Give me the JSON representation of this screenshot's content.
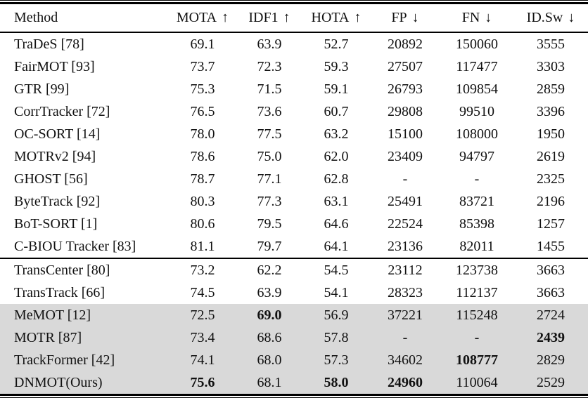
{
  "table": {
    "columns": [
      {
        "label": "Method",
        "arrow": ""
      },
      {
        "label": "MOTA",
        "arrow": "↑"
      },
      {
        "label": "IDF1",
        "arrow": "↑"
      },
      {
        "label": "HOTA",
        "arrow": "↑"
      },
      {
        "label": "FP",
        "arrow": "↓"
      },
      {
        "label": "FN",
        "arrow": "↓"
      },
      {
        "label": "ID.Sw",
        "arrow": "↓"
      }
    ],
    "colors": {
      "shaded_row_bg": "#d9d9d9",
      "rule": "#000000",
      "text": "#111111"
    },
    "sections": [
      {
        "shaded": false,
        "rule_above": false,
        "rows": [
          {
            "method": "TraDeS [78]",
            "values": [
              "69.1",
              "63.9",
              "52.7",
              "20892",
              "150060",
              "3555"
            ],
            "bold": []
          },
          {
            "method": "FairMOT [93]",
            "values": [
              "73.7",
              "72.3",
              "59.3",
              "27507",
              "117477",
              "3303"
            ],
            "bold": []
          },
          {
            "method": "GTR [99]",
            "values": [
              "75.3",
              "71.5",
              "59.1",
              "26793",
              "109854",
              "2859"
            ],
            "bold": []
          },
          {
            "method": "CorrTracker [72]",
            "values": [
              "76.5",
              "73.6",
              "60.7",
              "29808",
              "99510",
              "3396"
            ],
            "bold": []
          },
          {
            "method": "OC-SORT [14]",
            "values": [
              "78.0",
              "77.5",
              "63.2",
              "15100",
              "108000",
              "1950"
            ],
            "bold": []
          },
          {
            "method": "MOTRv2 [94]",
            "values": [
              "78.6",
              "75.0",
              "62.0",
              "23409",
              "94797",
              "2619"
            ],
            "bold": []
          },
          {
            "method": "GHOST [56]",
            "values": [
              "78.7",
              "77.1",
              "62.8",
              "-",
              "-",
              "2325"
            ],
            "bold": []
          },
          {
            "method": "ByteTrack [92]",
            "values": [
              "80.3",
              "77.3",
              "63.1",
              "25491",
              "83721",
              "2196"
            ],
            "bold": []
          },
          {
            "method": "BoT-SORT [1]",
            "values": [
              "80.6",
              "79.5",
              "64.6",
              "22524",
              "85398",
              "1257"
            ],
            "bold": []
          },
          {
            "method": "C-BIOU Tracker [83]",
            "values": [
              "81.1",
              "79.7",
              "64.1",
              "23136",
              "82011",
              "1455"
            ],
            "bold": []
          }
        ]
      },
      {
        "shaded": false,
        "rule_above": true,
        "rows": [
          {
            "method": "TransCenter [80]",
            "values": [
              "73.2",
              "62.2",
              "54.5",
              "23112",
              "123738",
              "3663"
            ],
            "bold": []
          },
          {
            "method": "TransTrack [66]",
            "values": [
              "74.5",
              "63.9",
              "54.1",
              "28323",
              "112137",
              "3663"
            ],
            "bold": []
          }
        ]
      },
      {
        "shaded": true,
        "rule_above": false,
        "rows": [
          {
            "method": "MeMOT [12]",
            "values": [
              "72.5",
              "69.0",
              "56.9",
              "37221",
              "115248",
              "2724"
            ],
            "bold": [
              1
            ]
          },
          {
            "method": "MOTR [87]",
            "values": [
              "73.4",
              "68.6",
              "57.8",
              "-",
              "-",
              "2439"
            ],
            "bold": [
              5
            ]
          },
          {
            "method": "TrackFormer [42]",
            "values": [
              "74.1",
              "68.0",
              "57.3",
              "34602",
              "108777",
              "2829"
            ],
            "bold": [
              4
            ]
          },
          {
            "method": "DNMOT(Ours)",
            "values": [
              "75.6",
              "68.1",
              "58.0",
              "24960",
              "110064",
              "2529"
            ],
            "bold": [
              0,
              2,
              3
            ]
          }
        ]
      }
    ]
  }
}
